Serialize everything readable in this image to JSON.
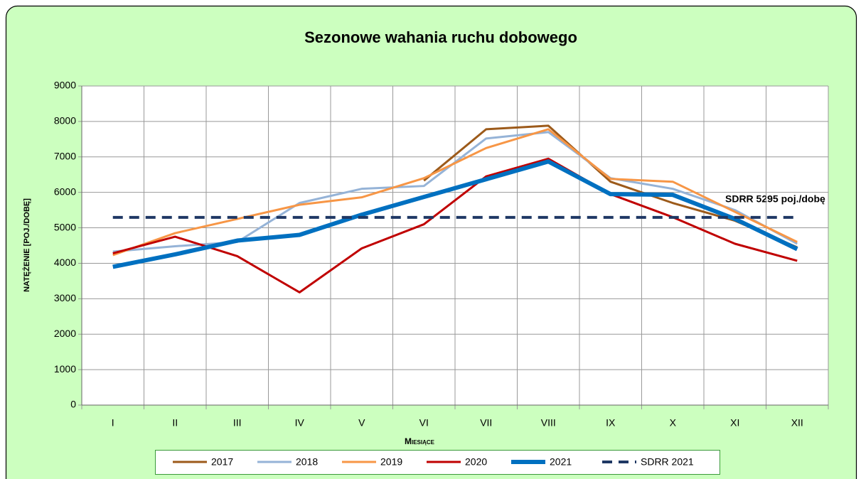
{
  "chart_data": {
    "type": "line",
    "title": "Sezonowe wahania ruchu dobowego",
    "x_label": "Miesiące",
    "y_label": "natężenie [poj./dobę]",
    "annotation": "SDRR 5295  poj./dobę",
    "categories": [
      "I",
      "II",
      "III",
      "IV",
      "V",
      "VI",
      "VII",
      "VIII",
      "IX",
      "X",
      "XI",
      "XII"
    ],
    "series": [
      {
        "name": "2017",
        "color": "#9c5a1a",
        "width": 3,
        "values": [
          null,
          null,
          null,
          null,
          null,
          6330,
          7780,
          7880,
          6300,
          5700,
          5200,
          4450
        ]
      },
      {
        "name": "2018",
        "color": "#95b3d7",
        "width": 3,
        "values": [
          4330,
          4480,
          4600,
          5700,
          6100,
          6180,
          7520,
          7700,
          6400,
          6100,
          5500,
          4550
        ]
      },
      {
        "name": "2019",
        "color": "#f79646",
        "width": 3,
        "values": [
          4230,
          4850,
          5250,
          5650,
          5860,
          6400,
          7250,
          7780,
          6380,
          6300,
          5450,
          4600
        ]
      },
      {
        "name": "2020",
        "color": "#c00000",
        "width": 3,
        "values": [
          4280,
          4750,
          4200,
          3180,
          4420,
          5100,
          6450,
          6950,
          5950,
          5300,
          4550,
          4070
        ]
      },
      {
        "name": "2021",
        "color": "#0070c0",
        "width": 6,
        "values": [
          3900,
          4250,
          4640,
          4800,
          5370,
          5870,
          6370,
          6870,
          5950,
          5930,
          5250,
          4400
        ]
      },
      {
        "name": "SDRR 2021",
        "color": "#1f3864",
        "width": 4,
        "dashed": true,
        "values": [
          5295,
          5295,
          5295,
          5295,
          5295,
          5295,
          5295,
          5295,
          5295,
          5295,
          5295,
          5295
        ]
      }
    ],
    "ylim": [
      0,
      9000
    ],
    "yticks": [
      0,
      1000,
      2000,
      3000,
      4000,
      5000,
      6000,
      7000,
      8000,
      9000
    ],
    "grid": true,
    "legend": "bottom"
  }
}
